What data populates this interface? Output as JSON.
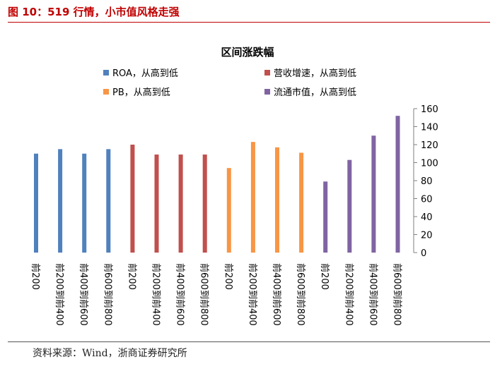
{
  "figure": {
    "title": "图 10：519 行情，小市值风格走强",
    "source": "资料来源：Wind，浙商证券研究所"
  },
  "chart_data": {
    "type": "bar",
    "title": "区间涨跌幅",
    "xlabel": "",
    "ylabel": "",
    "ylim": [
      0,
      160
    ],
    "yticks": [
      0,
      20,
      40,
      60,
      80,
      100,
      120,
      140,
      160
    ],
    "grid": false,
    "legend_position": "top",
    "series": [
      {
        "name": "ROA，从高到低",
        "color": "#4f81bd",
        "categories": [
          "前200",
          "前200到前400",
          "前400到前600",
          "前600到前800"
        ],
        "values": [
          110,
          115,
          110,
          115
        ]
      },
      {
        "name": "营收增速，从高到低",
        "color": "#c0504d",
        "categories": [
          "前200",
          "前200到前400",
          "前400到前600",
          "前600到前800"
        ],
        "values": [
          120,
          109,
          109,
          109
        ]
      },
      {
        "name": "PB，从高到低",
        "color": "#f79646",
        "categories": [
          "前200",
          "前200到前400",
          "前400到前600",
          "前600到前800"
        ],
        "values": [
          94,
          123,
          117,
          111
        ]
      },
      {
        "name": "流通市值，从高到低",
        "color": "#8064a2",
        "categories": [
          "前200",
          "前200到前400",
          "前400到前600",
          "前600到前800"
        ],
        "values": [
          79,
          103,
          130,
          152
        ]
      }
    ]
  }
}
